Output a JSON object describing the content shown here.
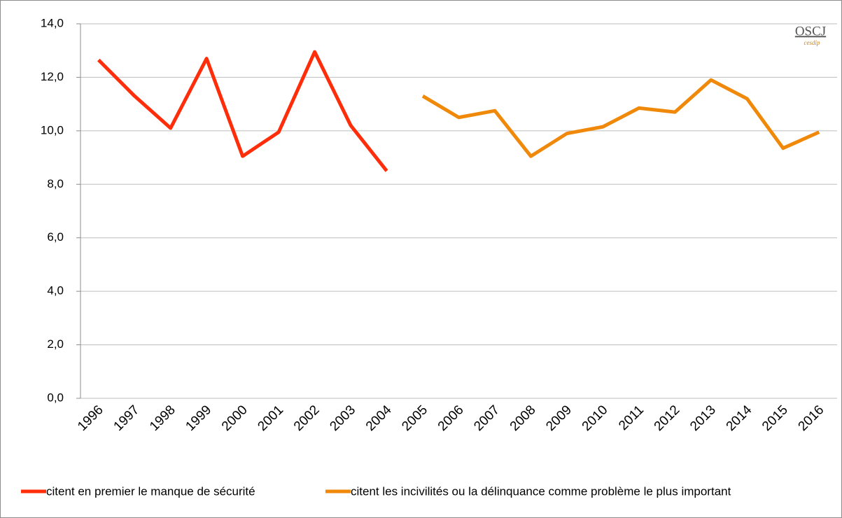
{
  "chart_data": {
    "type": "line",
    "categories": [
      "1996",
      "1997",
      "1998",
      "1999",
      "2000",
      "2001",
      "2002",
      "2003",
      "2004",
      "2005",
      "2006",
      "2007",
      "2008",
      "2009",
      "2010",
      "2011",
      "2012",
      "2013",
      "2014",
      "2015",
      "2016"
    ],
    "series": [
      {
        "name": "citent en premier le manque de sécurité",
        "color": "#ff2d0a",
        "values": [
          12.65,
          11.3,
          10.1,
          12.7,
          9.05,
          9.95,
          12.95,
          10.2,
          8.5,
          null,
          null,
          null,
          null,
          null,
          null,
          null,
          null,
          null,
          null,
          null,
          null
        ]
      },
      {
        "name": "citent les incivilités ou la délinquance comme problème le plus important",
        "color": "#f0890a",
        "values": [
          null,
          null,
          null,
          null,
          null,
          null,
          null,
          null,
          null,
          11.3,
          10.5,
          10.75,
          9.05,
          9.9,
          10.15,
          10.85,
          10.7,
          11.9,
          11.2,
          9.35,
          9.95
        ]
      }
    ],
    "ylim": [
      0,
      14
    ],
    "yticks": [
      {
        "value": 0,
        "label": "0,0"
      },
      {
        "value": 2,
        "label": "2,0"
      },
      {
        "value": 4,
        "label": "4,0"
      },
      {
        "value": 6,
        "label": "6,0"
      },
      {
        "value": 8,
        "label": "8,0"
      },
      {
        "value": 10,
        "label": "10,0"
      },
      {
        "value": 12,
        "label": "12,0"
      },
      {
        "value": 14,
        "label": "14,0"
      }
    ],
    "grid": true,
    "legend": "bottom",
    "annotations": [
      "OSCJ",
      "cesdip"
    ]
  }
}
